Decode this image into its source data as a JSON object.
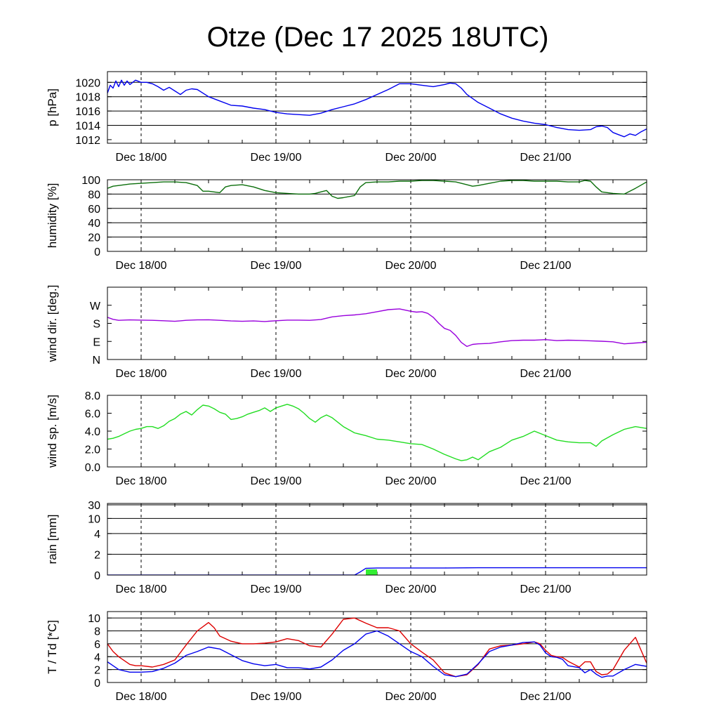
{
  "page": {
    "title": "Otze (Dec 17 2025 18UTC)"
  },
  "chart_data": {
    "type": "line",
    "title": "Otze (Dec 17 2025 18UTC)",
    "time_unit": "hours",
    "xlim": [
      0,
      96
    ],
    "x_ticks": [
      {
        "x": 6,
        "label": "Dec 18/00"
      },
      {
        "x": 30,
        "label": "Dec 19/00"
      },
      {
        "x": 54,
        "label": "Dec 20/00"
      },
      {
        "x": 78,
        "label": "Dec 21/00"
      }
    ],
    "panels": [
      {
        "id": "pressure",
        "ylabel": "p [hPa]",
        "ylim": [
          1011.5,
          1021.5
        ],
        "yticks": [
          1012,
          1014,
          1016,
          1018,
          1020
        ],
        "ytick_labels": [
          "1012",
          "1014",
          "1016",
          "1018",
          "1020"
        ],
        "gridlines": [
          1014,
          1016,
          1018,
          1020
        ],
        "series": [
          {
            "color": "#0000ee",
            "x": [
              0,
              0.5,
              1,
              1.5,
              2,
              2.5,
              3,
              3.5,
              4,
              5,
              6,
              7,
              8,
              9,
              10,
              11,
              12,
              13,
              14,
              15,
              16,
              18,
              20,
              22,
              24,
              26,
              28,
              30,
              32,
              34,
              36,
              38,
              40,
              42,
              44,
              46,
              48,
              50,
              52,
              54,
              56,
              58,
              60,
              61,
              62,
              63,
              64,
              66,
              68,
              70,
              72,
              74,
              76,
              78,
              80,
              82,
              84,
              86,
              87,
              88,
              89,
              90,
              91,
              92,
              93,
              94,
              95,
              96
            ],
            "y": [
              1018.5,
              1019.6,
              1019.2,
              1020.2,
              1019.4,
              1020.3,
              1019.6,
              1020.2,
              1019.7,
              1020.3,
              1020.0,
              1020.0,
              1019.8,
              1019.4,
              1018.9,
              1019.3,
              1018.8,
              1018.3,
              1018.9,
              1019.1,
              1019.0,
              1018.0,
              1017.4,
              1016.8,
              1016.7,
              1016.4,
              1016.2,
              1015.8,
              1015.6,
              1015.5,
              1015.4,
              1015.7,
              1016.2,
              1016.6,
              1017.0,
              1017.6,
              1018.3,
              1019.0,
              1019.8,
              1019.8,
              1019.6,
              1019.4,
              1019.7,
              1019.9,
              1019.8,
              1019.2,
              1018.3,
              1017.2,
              1016.4,
              1015.6,
              1015.0,
              1014.6,
              1014.3,
              1014.1,
              1013.7,
              1013.4,
              1013.3,
              1013.4,
              1013.8,
              1013.9,
              1013.7,
              1013.0,
              1012.7,
              1012.4,
              1012.8,
              1012.6,
              1013.1,
              1013.5
            ]
          }
        ]
      },
      {
        "id": "humidity",
        "ylabel": "humidity [%]",
        "ylim": [
          0,
          100
        ],
        "yticks": [
          0,
          20,
          40,
          60,
          80,
          100
        ],
        "ytick_labels": [
          "0",
          "20",
          "40",
          "60",
          "80",
          "100"
        ],
        "gridlines": [
          20,
          40,
          60,
          80,
          100
        ],
        "series": [
          {
            "color": "#0b6e0b",
            "x": [
              0,
              1,
              2,
              4,
              6,
              8,
              10,
              12,
              14,
              16,
              17,
              18,
              20,
              21,
              22,
              24,
              26,
              28,
              30,
              32,
              34,
              36,
              37,
              38,
              39,
              40,
              41,
              42,
              44,
              45,
              46,
              48,
              50,
              52,
              54,
              56,
              58,
              60,
              62,
              64,
              65,
              66,
              68,
              70,
              72,
              74,
              76,
              78,
              80,
              82,
              84,
              85,
              86,
              87,
              88,
              90,
              92,
              94,
              96
            ],
            "y": [
              88,
              91,
              92,
              94,
              95,
              96,
              97,
              97,
              96,
              92,
              84,
              84,
              82,
              90,
              92,
              93,
              90,
              85,
              82,
              81,
              80,
              80,
              81,
              83,
              85,
              77,
              74,
              75,
              78,
              90,
              96,
              97,
              97,
              98,
              98,
              99,
              99,
              98,
              97,
              93,
              91,
              92,
              95,
              98,
              99,
              99,
              98,
              98,
              98,
              97,
              97,
              99,
              98,
              90,
              83,
              81,
              80,
              88,
              97
            ]
          }
        ]
      },
      {
        "id": "wind_direction",
        "ylabel": "wind dir. [deg.]",
        "ylim": [
          0,
          360
        ],
        "yticks": [
          0,
          90,
          180,
          270
        ],
        "ytick_labels": [
          "N",
          "E",
          "S",
          "W"
        ],
        "gridlines": [],
        "series": [
          {
            "color": "#9900dd",
            "x": [
              0,
              1,
              2,
              4,
              6,
              8,
              10,
              12,
              14,
              16,
              18,
              20,
              22,
              24,
              26,
              28,
              30,
              32,
              34,
              36,
              38,
              40,
              42,
              44,
              46,
              48,
              50,
              52,
              54,
              55,
              56,
              57,
              58,
              59,
              60,
              61,
              62,
              63,
              64,
              65,
              66,
              68,
              70,
              72,
              74,
              76,
              78,
              80,
              82,
              84,
              86,
              88,
              90,
              92,
              94,
              96
            ],
            "y": [
              210,
              200,
              195,
              197,
              196,
              195,
              193,
              190,
              195,
              197,
              198,
              195,
              192,
              190,
              192,
              189,
              193,
              196,
              196,
              195,
              199,
              212,
              218,
              222,
              228,
              238,
              248,
              252,
              240,
              236,
              238,
              230,
              210,
              180,
              155,
              145,
              120,
              85,
              65,
              75,
              78,
              80,
              88,
              94,
              96,
              96,
              99,
              94,
              96,
              95,
              93,
              91,
              88,
              78,
              82,
              86
            ]
          }
        ]
      },
      {
        "id": "wind_speed",
        "ylabel": "wind sp. [m/s]",
        "ylim": [
          0,
          8
        ],
        "yticks": [
          0,
          2,
          4,
          6,
          8
        ],
        "ytick_labels": [
          "0.0",
          "2.0",
          "4.0",
          "6.0",
          "8.0"
        ],
        "gridlines": [],
        "series": [
          {
            "color": "#22dd22",
            "x": [
              0,
              1,
              2,
              3,
              4,
              5,
              6,
              7,
              8,
              9,
              10,
              11,
              12,
              13,
              14,
              15,
              16,
              17,
              18,
              19,
              20,
              21,
              22,
              23,
              24,
              25,
              26,
              27,
              28,
              29,
              30,
              31,
              32,
              33,
              34,
              35,
              36,
              37,
              38,
              39,
              40,
              42,
              44,
              46,
              48,
              50,
              52,
              54,
              56,
              58,
              60,
              62,
              63,
              64,
              65,
              66,
              68,
              70,
              72,
              74,
              76,
              78,
              80,
              82,
              84,
              86,
              87,
              88,
              90,
              92,
              94,
              96
            ],
            "y": [
              3.1,
              3.2,
              3.4,
              3.7,
              4.0,
              4.2,
              4.3,
              4.5,
              4.5,
              4.3,
              4.6,
              5.1,
              5.4,
              5.9,
              6.2,
              5.8,
              6.4,
              6.9,
              6.8,
              6.5,
              6.1,
              5.9,
              5.3,
              5.4,
              5.6,
              5.9,
              6.1,
              6.3,
              6.6,
              6.2,
              6.6,
              6.8,
              7.0,
              6.8,
              6.5,
              6.0,
              5.4,
              5.0,
              5.5,
              5.8,
              5.5,
              4.5,
              3.8,
              3.5,
              3.1,
              3.0,
              2.8,
              2.6,
              2.5,
              2.0,
              1.4,
              0.9,
              0.7,
              0.8,
              1.1,
              0.8,
              1.7,
              2.2,
              3.0,
              3.4,
              4.0,
              3.5,
              3.0,
              2.8,
              2.7,
              2.7,
              2.3,
              2.9,
              3.6,
              4.2,
              4.5,
              4.3
            ]
          }
        ]
      },
      {
        "id": "rain",
        "ylabel": "rain [mm]",
        "scale": "nonlinear",
        "ylim": [
          0,
          30
        ],
        "yticks": [
          0,
          2,
          4,
          10,
          30
        ],
        "ytick_labels": [
          "0",
          "2",
          "4",
          "10",
          "30"
        ],
        "gridlines": [
          2,
          4,
          10,
          30
        ],
        "series": [
          {
            "color": "#0000ee",
            "type": "line",
            "x": [
              0,
              42,
              44,
              45,
              46,
              48,
              54,
              60,
              66,
              72,
              78,
              84,
              90,
              96
            ],
            "y": [
              0,
              0,
              0,
              0.3,
              0.65,
              0.68,
              0.68,
              0.68,
              0.7,
              0.7,
              0.7,
              0.7,
              0.7,
              0.7
            ]
          },
          {
            "color": "#33ee33",
            "type": "bar",
            "x": [
              46,
              48
            ],
            "y": [
              0.55,
              0.5
            ]
          }
        ]
      },
      {
        "id": "temperature",
        "ylabel": "T / Td [*C]",
        "ylim": [
          0,
          11
        ],
        "yticks": [
          0,
          2,
          4,
          6,
          8,
          10
        ],
        "ytick_labels": [
          "0",
          "2",
          "4",
          "6",
          "8",
          "10"
        ],
        "gridlines": [
          2,
          4,
          6,
          8,
          10
        ],
        "series": [
          {
            "color": "#dd0000",
            "x": [
              0,
              1,
              2,
              3,
              4,
              5,
              6,
              8,
              10,
              12,
              14,
              16,
              18,
              19,
              20,
              22,
              24,
              26,
              28,
              30,
              32,
              34,
              36,
              38,
              40,
              42,
              44,
              46,
              48,
              50,
              52,
              54,
              56,
              58,
              60,
              62,
              64,
              66,
              68,
              70,
              72,
              74,
              76,
              77,
              78,
              79,
              80,
              81,
              82,
              84,
              85,
              86,
              87,
              88,
              89,
              90,
              91,
              92,
              94,
              96
            ],
            "y": [
              6.0,
              4.8,
              4.0,
              3.4,
              2.8,
              2.6,
              2.6,
              2.4,
              2.8,
              3.5,
              5.8,
              8.0,
              9.3,
              8.5,
              7.2,
              6.4,
              6.0,
              6.0,
              6.1,
              6.3,
              6.8,
              6.5,
              5.7,
              5.5,
              7.5,
              9.8,
              10.0,
              9.2,
              8.5,
              8.5,
              8.0,
              6.0,
              4.7,
              3.5,
              1.5,
              0.9,
              1.2,
              2.8,
              5.2,
              5.7,
              5.8,
              6.0,
              6.3,
              6.0,
              5.0,
              4.2,
              4.0,
              3.9,
              3.3,
              2.4,
              3.2,
              3.2,
              1.7,
              1.2,
              1.3,
              2.0,
              3.5,
              5.0,
              7.0,
              3.0
            ]
          },
          {
            "color": "#0000ee",
            "x": [
              0,
              1,
              2,
              3,
              4,
              5,
              6,
              8,
              10,
              12,
              14,
              16,
              18,
              20,
              22,
              24,
              26,
              28,
              30,
              32,
              34,
              36,
              38,
              40,
              42,
              44,
              46,
              48,
              50,
              52,
              54,
              56,
              58,
              60,
              62,
              64,
              66,
              68,
              70,
              72,
              74,
              76,
              77,
              78,
              79,
              80,
              81,
              82,
              84,
              85,
              86,
              87,
              88,
              89,
              90,
              92,
              94,
              96
            ],
            "y": [
              3.2,
              2.6,
              2.0,
              1.8,
              1.6,
              1.6,
              1.6,
              1.7,
              2.2,
              3.0,
              4.2,
              4.8,
              5.5,
              5.2,
              4.3,
              3.4,
              2.9,
              2.6,
              2.8,
              2.3,
              2.3,
              2.1,
              2.4,
              3.5,
              5.0,
              6.0,
              7.5,
              8.0,
              7.2,
              6.0,
              4.8,
              4.0,
              2.5,
              1.2,
              0.9,
              1.3,
              2.9,
              4.8,
              5.5,
              5.8,
              6.2,
              6.3,
              5.8,
              4.6,
              4.0,
              3.9,
              3.6,
              2.6,
              2.3,
              1.5,
              2.0,
              1.3,
              0.8,
              1.0,
              1.0,
              2.0,
              2.8,
              2.5
            ]
          }
        ]
      }
    ]
  }
}
